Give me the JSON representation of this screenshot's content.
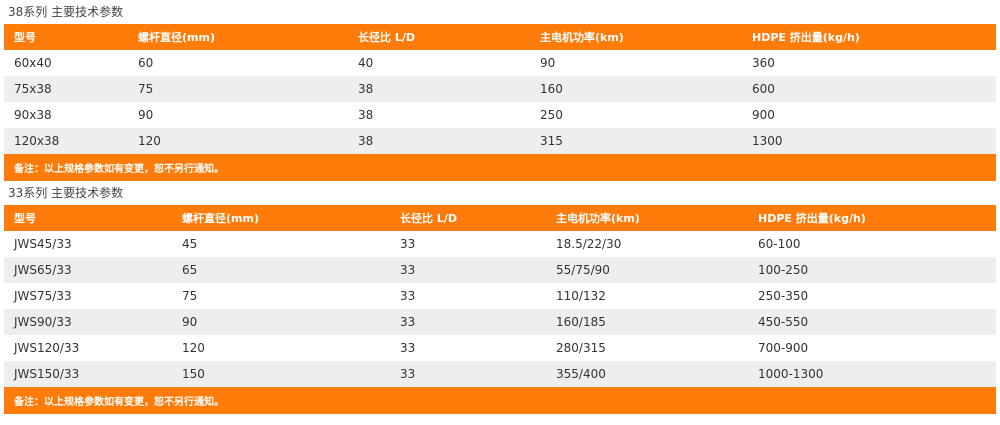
{
  "sections": [
    {
      "title": "38系列 主要技术参数",
      "headers": [
        "型号",
        "螺杆直径(mm)",
        "长径比 L/D",
        "主电机功率(km)",
        "HDPE 挤出量(kg/h)"
      ],
      "rows": [
        [
          "60x40",
          "60",
          "40",
          "90",
          "360"
        ],
        [
          "75x38",
          "75",
          "38",
          "160",
          "600"
        ],
        [
          "90x38",
          "90",
          "38",
          "250",
          "900"
        ],
        [
          "120x38",
          "120",
          "38",
          "315",
          "1300"
        ]
      ],
      "note": "备注：以上规格参数如有变更，恕不另行通知。"
    },
    {
      "title": "33系列 主要技术参数",
      "headers": [
        "型号",
        "螺杆直径(mm)",
        "长径比 L/D",
        "主电机功率(km)",
        "HDPE 挤出量(kg/h)"
      ],
      "rows": [
        [
          "JWS45/33",
          "45",
          "33",
          "18.5/22/30",
          "60-100"
        ],
        [
          "JWS65/33",
          "65",
          "33",
          "55/75/90",
          "100-250"
        ],
        [
          "JWS75/33",
          "75",
          "33",
          "110/132",
          "250-350"
        ],
        [
          "JWS90/33",
          "90",
          "33",
          "160/185",
          "450-550"
        ],
        [
          "JWS120/33",
          "120",
          "33",
          "280/315",
          "700-900"
        ],
        [
          "JWS150/33",
          "150",
          "33",
          "355/400",
          "1000-1300"
        ]
      ],
      "note": "备注：以上规格参数如有变更，恕不另行通知。"
    }
  ],
  "colors": {
    "header_bg": "#ff7b0a",
    "alt_row_bg": "#eeeeee"
  }
}
